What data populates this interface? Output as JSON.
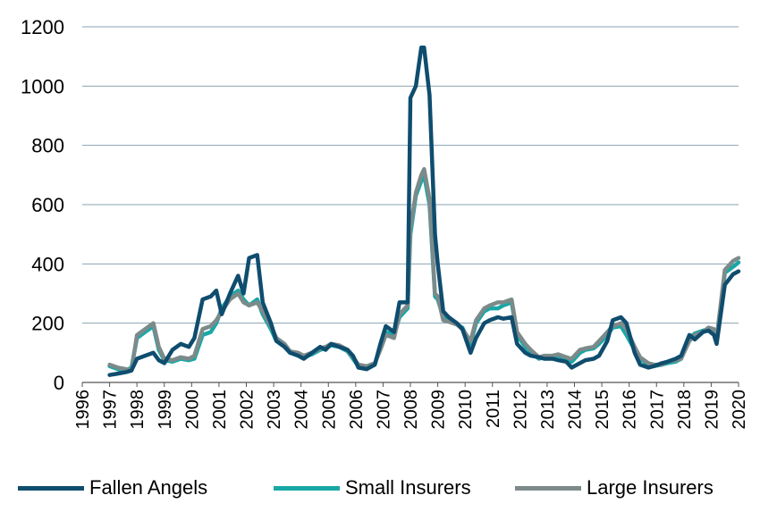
{
  "colors": {
    "fallen_angels": "#0f4d6e",
    "small_insurers": "#18a8a6",
    "large_insurers": "#7d8a8a",
    "grid": "#8aa3b1",
    "axis": "#555555"
  },
  "chart_data": {
    "type": "line",
    "title": "",
    "xlabel": "",
    "ylabel": "",
    "xlim": [
      1996,
      2020
    ],
    "ylim": [
      0,
      1200
    ],
    "x_ticks": [
      "1996",
      "1997",
      "1998",
      "1999",
      "2000",
      "2001",
      "2002",
      "2003",
      "2004",
      "2005",
      "2006",
      "2007",
      "2008",
      "2009",
      "2010",
      "2011",
      "2012",
      "2013",
      "2014",
      "2015",
      "2016",
      "2017",
      "2018",
      "2019",
      "2020"
    ],
    "y_ticks": [
      "0",
      "200",
      "400",
      "600",
      "800",
      "1000",
      "1200"
    ],
    "grid": "horizontal",
    "legend_position": "bottom",
    "x": [
      1997.0,
      1997.3,
      1997.6,
      1997.8,
      1998.0,
      1998.3,
      1998.6,
      1998.8,
      1999.0,
      1999.3,
      1999.6,
      1999.9,
      2000.1,
      2000.4,
      2000.7,
      2000.9,
      2001.1,
      2001.4,
      2001.7,
      2001.9,
      2002.1,
      2002.4,
      2002.6,
      2002.9,
      2003.1,
      2003.4,
      2003.6,
      2003.9,
      2004.1,
      2004.4,
      2004.7,
      2004.9,
      2005.1,
      2005.4,
      2005.7,
      2005.9,
      2006.1,
      2006.4,
      2006.7,
      2006.9,
      2007.1,
      2007.4,
      2007.6,
      2007.9,
      2008.0,
      2008.2,
      2008.4,
      2008.5,
      2008.7,
      2008.9,
      2009.0,
      2009.2,
      2009.4,
      2009.7,
      2009.9,
      2010.2,
      2010.4,
      2010.7,
      2010.9,
      2011.2,
      2011.4,
      2011.7,
      2011.9,
      2012.2,
      2012.4,
      2012.7,
      2012.9,
      2013.2,
      2013.4,
      2013.7,
      2013.9,
      2014.2,
      2014.4,
      2014.7,
      2014.9,
      2015.2,
      2015.4,
      2015.7,
      2015.9,
      2016.2,
      2016.4,
      2016.7,
      2016.9,
      2017.2,
      2017.4,
      2017.7,
      2017.9,
      2018.2,
      2018.4,
      2018.7,
      2018.9,
      2019.1,
      2019.2,
      2019.5,
      2019.8,
      2020.0
    ],
    "series": [
      {
        "name": "Fallen Angels",
        "values": [
          25,
          30,
          35,
          40,
          80,
          90,
          100,
          75,
          65,
          110,
          130,
          120,
          150,
          280,
          290,
          310,
          230,
          300,
          360,
          300,
          420,
          430,
          270,
          200,
          140,
          120,
          100,
          90,
          80,
          100,
          120,
          110,
          130,
          120,
          110,
          90,
          50,
          45,
          60,
          130,
          190,
          170,
          270,
          270,
          960,
          1000,
          1130,
          1130,
          970,
          500,
          400,
          240,
          220,
          200,
          180,
          100,
          150,
          200,
          210,
          220,
          215,
          220,
          130,
          100,
          90,
          85,
          80,
          80,
          75,
          70,
          50,
          65,
          75,
          80,
          90,
          140,
          210,
          220,
          200,
          100,
          60,
          50,
          55,
          65,
          70,
          80,
          90,
          160,
          145,
          170,
          175,
          160,
          130,
          330,
          365,
          375
        ]
      },
      {
        "name": "Small Insurers",
        "values": [
          55,
          45,
          40,
          50,
          150,
          170,
          190,
          110,
          75,
          70,
          80,
          75,
          80,
          160,
          170,
          200,
          250,
          290,
          310,
          280,
          260,
          280,
          230,
          180,
          140,
          120,
          100,
          95,
          85,
          95,
          110,
          115,
          125,
          120,
          105,
          80,
          55,
          50,
          60,
          120,
          170,
          160,
          220,
          250,
          500,
          630,
          680,
          700,
          600,
          290,
          280,
          220,
          210,
          195,
          185,
          130,
          200,
          240,
          250,
          250,
          260,
          270,
          160,
          120,
          100,
          80,
          85,
          85,
          90,
          80,
          70,
          100,
          110,
          115,
          130,
          160,
          185,
          190,
          160,
          110,
          80,
          60,
          55,
          60,
          65,
          70,
          80,
          150,
          165,
          175,
          180,
          170,
          140,
          370,
          390,
          405
        ]
      },
      {
        "name": "Large Insurers",
        "values": [
          60,
          50,
          45,
          40,
          160,
          180,
          200,
          120,
          80,
          75,
          85,
          80,
          90,
          180,
          190,
          210,
          240,
          280,
          300,
          270,
          260,
          270,
          240,
          190,
          150,
          130,
          105,
          100,
          90,
          100,
          115,
          120,
          130,
          125,
          110,
          85,
          60,
          55,
          65,
          110,
          160,
          150,
          230,
          260,
          520,
          640,
          700,
          720,
          620,
          300,
          290,
          210,
          205,
          195,
          180,
          140,
          210,
          250,
          260,
          270,
          270,
          280,
          170,
          130,
          110,
          85,
          90,
          90,
          95,
          85,
          80,
          110,
          115,
          120,
          140,
          170,
          190,
          200,
          180,
          120,
          85,
          65,
          60,
          60,
          70,
          75,
          80,
          140,
          160,
          170,
          185,
          180,
          150,
          380,
          410,
          420
        ]
      }
    ]
  }
}
